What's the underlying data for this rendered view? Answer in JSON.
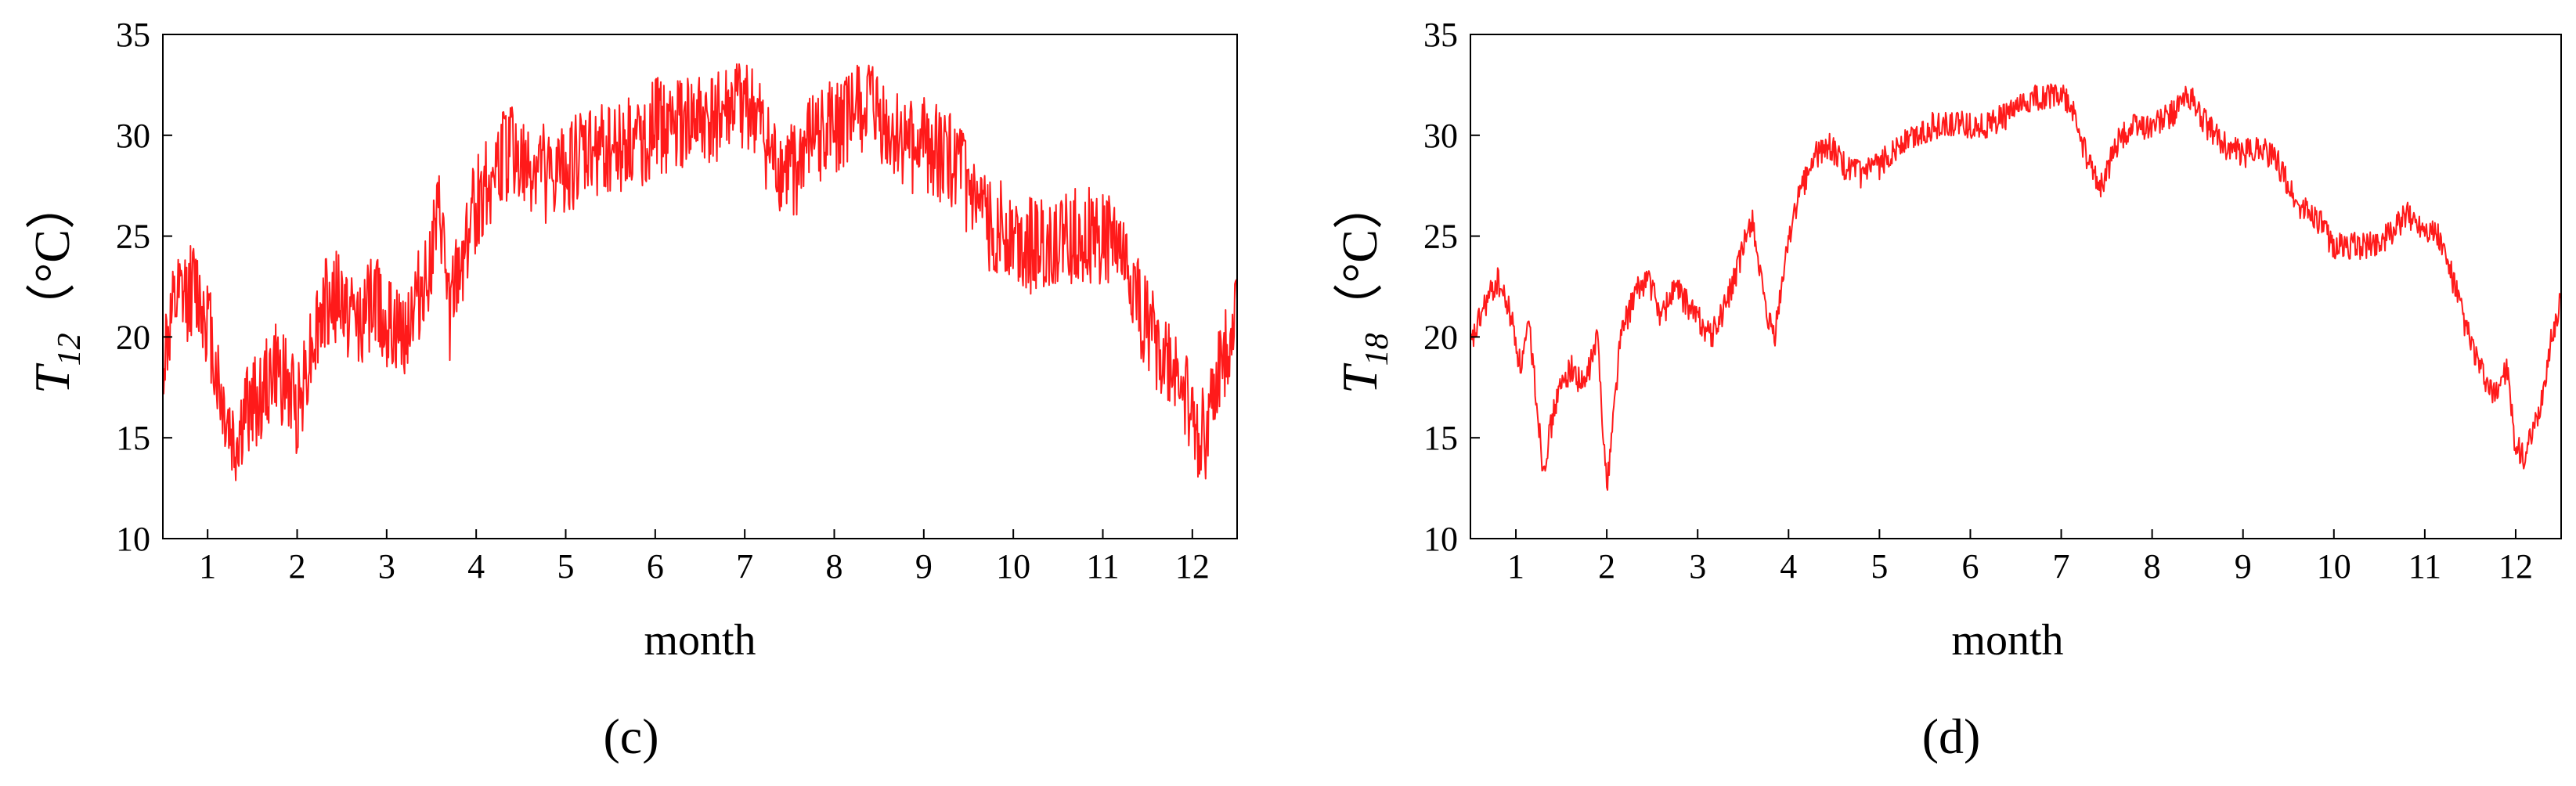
{
  "chart_data": [
    {
      "type": "line",
      "panel_label": "(c)",
      "ylabel_main": "T",
      "ylabel_sub": "12",
      "ylabel_unit": "（°C）",
      "xlabel": "month",
      "xlim": [
        0.5,
        12.5
      ],
      "ylim": [
        10,
        35
      ],
      "xticks": [
        1,
        2,
        3,
        4,
        5,
        6,
        7,
        8,
        9,
        10,
        11,
        12
      ],
      "yticks": [
        10,
        15,
        20,
        25,
        30,
        35
      ],
      "line_color": "#ff1a1a",
      "grid": false,
      "noise_amplitude": 2.4,
      "series": [
        {
          "x": [
            0.5,
            0.65,
            0.85,
            1.0,
            1.15,
            1.3,
            1.45,
            1.6,
            1.75,
            1.9,
            2.0,
            2.15,
            2.3,
            2.45,
            2.6,
            2.75,
            2.9,
            3.0,
            3.15,
            3.3,
            3.45,
            3.6,
            3.7,
            3.8,
            3.95,
            4.1,
            4.25,
            4.4,
            4.55,
            4.7,
            4.85,
            5.0,
            5.2,
            5.4,
            5.6,
            5.8,
            6.0,
            6.2,
            6.4,
            6.6,
            6.8,
            7.0,
            7.15,
            7.3,
            7.45,
            7.6,
            7.8,
            8.0,
            8.2,
            8.4,
            8.6,
            8.8,
            9.0,
            9.2,
            9.4,
            9.6,
            9.8,
            10.0,
            10.2,
            10.4,
            10.6,
            10.8,
            11.0,
            11.15,
            11.3,
            11.45,
            11.6,
            11.75,
            11.9,
            12.0,
            12.15,
            12.3,
            12.5
          ],
          "y": [
            19.0,
            21.5,
            22.5,
            21.0,
            17.0,
            14.5,
            16.5,
            17.0,
            18.5,
            17.5,
            16.5,
            19.5,
            21.5,
            22.0,
            21.0,
            21.0,
            22.0,
            20.5,
            20.0,
            21.5,
            23.0,
            26.0,
            21.0,
            23.0,
            26.0,
            27.5,
            28.5,
            29.5,
            28.0,
            28.5,
            27.5,
            28.5,
            29.0,
            29.5,
            29.5,
            29.5,
            30.5,
            30.5,
            30.5,
            30.5,
            31.0,
            31.5,
            30.5,
            28.5,
            28.0,
            28.5,
            30.0,
            30.5,
            31.0,
            31.5,
            30.0,
            29.5,
            29.5,
            29.0,
            28.5,
            26.0,
            25.5,
            25.0,
            24.5,
            24.5,
            25.0,
            25.0,
            25.0,
            24.5,
            23.0,
            21.0,
            19.5,
            18.5,
            18.0,
            15.5,
            15.0,
            18.0,
            21.5
          ]
        }
      ]
    },
    {
      "type": "line",
      "panel_label": "(d)",
      "ylabel_main": "T",
      "ylabel_sub": "18",
      "ylabel_unit": "（°C）",
      "xlabel": "month",
      "xlim": [
        0.5,
        12.5
      ],
      "ylim": [
        10,
        35
      ],
      "xticks": [
        1,
        2,
        3,
        4,
        5,
        6,
        7,
        8,
        9,
        10,
        11,
        12
      ],
      "yticks": [
        10,
        15,
        20,
        25,
        30,
        35
      ],
      "line_color": "#ff1a1a",
      "grid": false,
      "noise_amplitude": 0.7,
      "series": [
        {
          "x": [
            0.5,
            0.65,
            0.8,
            0.95,
            1.05,
            1.15,
            1.3,
            1.45,
            1.6,
            1.75,
            1.9,
            2.0,
            2.15,
            2.3,
            2.45,
            2.6,
            2.75,
            2.9,
            3.0,
            3.15,
            3.3,
            3.45,
            3.6,
            3.75,
            3.85,
            4.0,
            4.15,
            4.3,
            4.45,
            4.6,
            4.8,
            5.0,
            5.2,
            5.4,
            5.6,
            5.8,
            6.0,
            6.2,
            6.4,
            6.6,
            6.8,
            7.0,
            7.15,
            7.3,
            7.45,
            7.6,
            7.8,
            8.0,
            8.2,
            8.4,
            8.6,
            8.8,
            9.0,
            9.2,
            9.4,
            9.6,
            9.8,
            10.0,
            10.2,
            10.4,
            10.6,
            10.8,
            11.0,
            11.15,
            11.3,
            11.45,
            11.6,
            11.75,
            11.9,
            12.0,
            12.1,
            12.25,
            12.4,
            12.5
          ],
          "y": [
            19.5,
            21.5,
            22.8,
            21.0,
            18.5,
            20.5,
            13.5,
            17.0,
            18.5,
            17.5,
            20.0,
            12.5,
            20.0,
            22.0,
            23.0,
            21.0,
            22.5,
            21.5,
            21.0,
            20.0,
            21.5,
            23.5,
            26.0,
            21.0,
            20.0,
            25.0,
            27.5,
            29.0,
            29.5,
            28.5,
            28.0,
            28.5,
            29.5,
            30.0,
            30.5,
            30.5,
            30.5,
            30.5,
            31.0,
            31.5,
            32.0,
            32.0,
            31.0,
            28.5,
            27.5,
            29.5,
            30.5,
            30.5,
            31.0,
            32.0,
            30.5,
            29.5,
            29.0,
            29.5,
            28.5,
            26.5,
            26.0,
            24.5,
            24.5,
            24.5,
            25.0,
            26.0,
            25.5,
            25.0,
            23.0,
            20.5,
            18.5,
            17.0,
            18.5,
            14.5,
            14.0,
            16.0,
            20.0,
            22.0
          ]
        }
      ]
    }
  ]
}
